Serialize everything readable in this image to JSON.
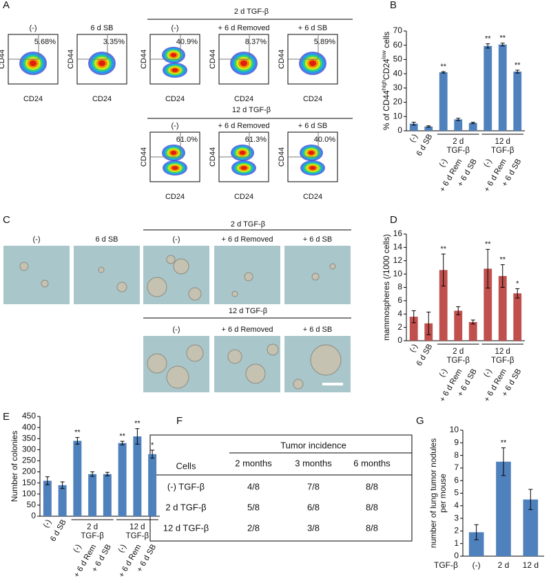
{
  "letters": [
    "A",
    "B",
    "C",
    "D",
    "E",
    "F",
    "G"
  ],
  "flow": {
    "axis_x": "CD24",
    "axis_y": "CD44",
    "groups": [
      "2 d TGF-β",
      "12 d TGF-β"
    ],
    "plots": [
      {
        "title": "(-)",
        "percent": "5.68%"
      },
      {
        "title": "6 d SB",
        "percent": "3.35%"
      },
      {
        "title": "(-)",
        "percent": "40.9%"
      },
      {
        "title": "+ 6 d Removed",
        "percent": "8.37%"
      },
      {
        "title": "+ 6 d SB",
        "percent": "5.89%"
      },
      {
        "title": "(-)",
        "percent": "61.0%"
      },
      {
        "title": "+ 6 d Removed",
        "percent": "61.3%"
      },
      {
        "title": "+ 6 d SB",
        "percent": "40.0%"
      }
    ]
  },
  "micrographs": {
    "groups": [
      "2 d TGF-β",
      "12 d TGF-β"
    ],
    "titles": [
      "(-)",
      "6 d SB",
      "(-)",
      "+ 6 d Removed",
      "+ 6 d SB",
      "(-)",
      "+ 6 d Removed",
      "+ 6 d SB"
    ]
  },
  "table": {
    "span_header": "Tumor incidence",
    "header": [
      "Cells",
      "2 months",
      "3 months",
      "6 months"
    ],
    "rows": [
      [
        "(-) TGF-β",
        "4/8",
        "7/8",
        "8/8"
      ],
      [
        "2 d TGF-β",
        "5/8",
        "6/8",
        "8/8"
      ],
      [
        "12 d TGF-β",
        "2/8",
        "3/8",
        "8/8"
      ]
    ]
  },
  "chart_data": [
    {
      "type": "bar",
      "color": "#4f81bd",
      "rotate_labels": true,
      "ylabel": [
        [
          {
            "text": "% of CD44"
          },
          {
            "text": "high",
            "sup": true
          },
          {
            "text": "CD24"
          },
          {
            "text": "low",
            "sup": true
          },
          {
            "text": " cells"
          }
        ]
      ],
      "categories": [
        "(-)",
        "6 d SB",
        "(-)",
        "+ 6 d Rem",
        "+ 6 d SB",
        "(-)",
        "+ 6 d Rem",
        "+ 6 d SB"
      ],
      "groups": [
        [
          "2 d",
          "TGF-β"
        ],
        [
          "12 d",
          "TGF-β"
        ]
      ],
      "values": [
        5,
        3,
        41,
        8,
        5.5,
        59.5,
        60.5,
        41.5
      ],
      "errors": [
        1,
        0.5,
        0.5,
        0.8,
        0.5,
        1.5,
        1,
        1
      ],
      "annotations": [
        null,
        null,
        "**",
        null,
        null,
        "**",
        "**",
        "**"
      ],
      "ylim": [
        0,
        70
      ],
      "yticks": [
        0,
        10,
        20,
        30,
        40,
        50,
        60,
        70
      ]
    },
    {
      "type": "bar",
      "color": "#c0504d",
      "rotate_labels": true,
      "ylabel": [
        "mammospheres (/1000 cells)"
      ],
      "categories": [
        "(-)",
        "6 d SB",
        "(-)",
        "+ 6 d Rem",
        "+ 6 d SB",
        "(-)",
        "+ 6 d Rem",
        "+ 6 d SB"
      ],
      "groups": [
        [
          "2 d",
          "TGF-β"
        ],
        [
          "12 d",
          "TGF-β"
        ]
      ],
      "values": [
        3.6,
        2.6,
        10.6,
        4.5,
        2.8,
        10.8,
        9.7,
        7.1
      ],
      "errors": [
        0.9,
        1.7,
        2.4,
        0.6,
        0.3,
        2.9,
        1.7,
        0.7
      ],
      "annotations": [
        null,
        null,
        "**",
        null,
        null,
        "**",
        "**",
        "*"
      ],
      "ylim": [
        0,
        16
      ],
      "yticks": [
        0,
        2,
        4,
        6,
        8,
        10,
        12,
        14,
        16
      ]
    },
    {
      "type": "bar",
      "color": "#4f81bd",
      "rotate_labels": true,
      "ylabel": [
        "Number of colonies"
      ],
      "categories": [
        "(-)",
        "6 d SB",
        "(-)",
        "+ 6 d Rem",
        "+ 6 d SB",
        "(-)",
        "+ 6 d Rem",
        "+ 6 d SB"
      ],
      "groups": [
        [
          "2 d",
          "TGF-β"
        ],
        [
          "12 d",
          "TGF-β"
        ]
      ],
      "values": [
        160,
        140,
        340,
        190,
        190,
        330,
        360,
        280
      ],
      "errors": [
        18,
        15,
        15,
        10,
        8,
        8,
        35,
        18
      ],
      "annotations": [
        null,
        null,
        "**",
        null,
        null,
        "**",
        "**",
        "*"
      ],
      "ylim": [
        0,
        450
      ],
      "yticks": [
        0,
        50,
        100,
        150,
        200,
        250,
        300,
        350,
        400,
        450
      ]
    },
    {
      "type": "bar",
      "color": "#4f81bd",
      "rotate_labels": false,
      "ylabel": [
        "number of lung tumor nodules",
        "per mouse"
      ],
      "xlabel": "TGF-β",
      "categories": [
        "(-)",
        "2 d",
        "12 d"
      ],
      "values": [
        1.9,
        7.5,
        4.5
      ],
      "errors": [
        0.6,
        1.1,
        0.8
      ],
      "annotations": [
        null,
        "**",
        null
      ],
      "ylim": [
        0,
        10
      ],
      "yticks": [
        0,
        1,
        2,
        3,
        4,
        5,
        6,
        7,
        8,
        9,
        10
      ]
    }
  ]
}
